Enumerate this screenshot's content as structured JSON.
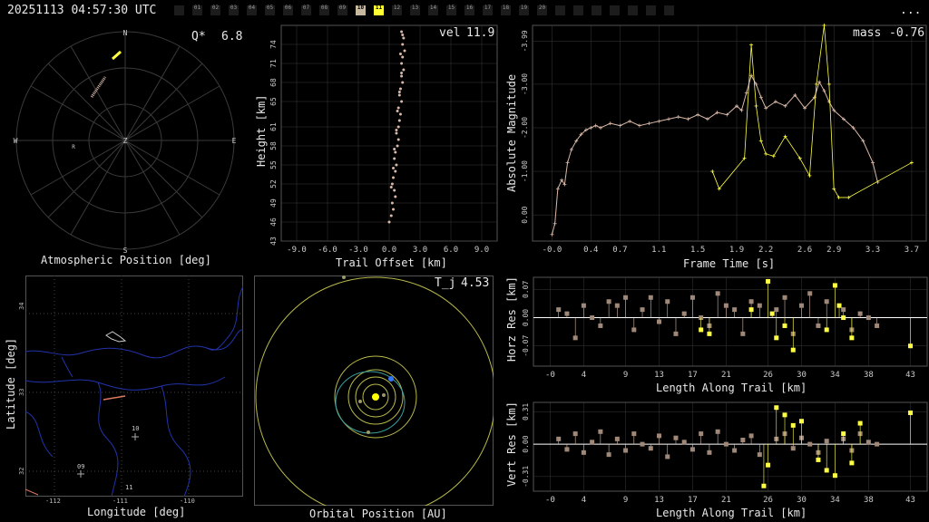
{
  "header": {
    "timestamp": "20251113 04:57:30 UTC",
    "menu": "...",
    "slots": [
      "",
      "01",
      "02",
      "03",
      "04",
      "05",
      "06",
      "07",
      "08",
      "09",
      "10",
      "11",
      "12",
      "13",
      "14",
      "15",
      "16",
      "17",
      "18",
      "19",
      "20",
      "",
      "",
      "",
      "",
      "",
      "",
      ""
    ],
    "selected_slot": "10",
    "current_slot": "11"
  },
  "panels": {
    "atmospheric": {
      "label": "Atmospheric Position [deg]",
      "stat_label": "Q*",
      "stat_value": "6.8",
      "compass": {
        "n": "N",
        "s": "S",
        "e": "E",
        "w": "W",
        "z": "Z",
        "r": "R"
      }
    },
    "height": {
      "label_x": "Trail Offset [km]",
      "label_y": "Height [km]",
      "stat_label": "vel",
      "stat_value": "11.9"
    },
    "magnitude": {
      "label_x": "Frame Time [s]",
      "label_y": "Absolute Magnitude",
      "stat_label": "mass",
      "stat_value": "-0.76"
    },
    "ground": {
      "label_x": "Longitude [deg]",
      "label_y": "Latitude [deg]",
      "markers": [
        "10",
        "09",
        "11"
      ]
    },
    "orbital": {
      "label": "Orbital Position [AU]",
      "stat_label": "T_j",
      "stat_value": "4.53"
    },
    "horz": {
      "label_x": "Length Along Trail [km]",
      "label_y": "Horz Res [km]"
    },
    "vert": {
      "label_x": "Length Along Trail [km]",
      "label_y": "Vert Res [km]"
    }
  },
  "colors": {
    "track": "#d8b8a8",
    "highlight": "#ffff44",
    "grid": "#3a3a3a",
    "map_water": "#2233aa",
    "orbit": "#b8b84a",
    "earth": "#3377ff"
  },
  "chart_data": [
    {
      "type": "scatter",
      "id": "height",
      "xlabel": "Trail Offset [km]",
      "ylabel": "Height [km]",
      "xlim": [
        -10.5,
        10.5
      ],
      "ylim": [
        43,
        77
      ],
      "x_ticks": [
        "-9.0",
        "-6.0",
        "-3.0",
        "0.0",
        "3.0",
        "6.0",
        "9.0"
      ],
      "x_tick_values": [
        -9,
        -6,
        -3,
        0,
        3,
        6,
        9
      ],
      "y_ticks": [
        "43",
        "46",
        "49",
        "52",
        "55",
        "58",
        "61",
        "65",
        "68",
        "71",
        "74"
      ],
      "y_tick_values": [
        43,
        46,
        49,
        52,
        55,
        58,
        61,
        65,
        68,
        71,
        74
      ],
      "series": [
        {
          "x": [
            0.0,
            0.2,
            0.4,
            0.3,
            0.6,
            0.5,
            0.3,
            0.4,
            0.6,
            0.7,
            0.5,
            0.6,
            0.8,
            0.9,
            0.7,
            0.9,
            1.0,
            1.1,
            0.9,
            1.2,
            1.0,
            1.1,
            1.3,
            1.2,
            1.4,
            1.2,
            1.3,
            1.5,
            1.3,
            1.4,
            1.2,
            1.3,
            1.1,
            1.2,
            1.0,
            0.8,
            0.7,
            0.5,
            0.4,
            0.2
          ],
          "y": [
            46,
            47,
            48,
            49,
            50,
            51,
            52,
            53,
            54,
            55,
            56,
            57,
            58,
            59,
            60,
            61,
            62,
            63,
            64,
            65,
            66,
            67,
            68,
            69,
            70,
            71,
            72,
            73,
            74,
            75,
            76,
            75.5,
            72.5,
            69.5,
            66.5,
            63.5,
            60.5,
            57.5,
            54.5,
            51.5
          ]
        }
      ]
    },
    {
      "type": "line",
      "id": "magnitude",
      "xlabel": "Frame Time [s]",
      "ylabel": "Absolute Magnitude",
      "xlim": [
        -0.2,
        3.85
      ],
      "ylim": [
        0.6,
        -4.35
      ],
      "x_ticks": [
        "-0.0",
        "0.4",
        "0.7",
        "1.1",
        "1.5",
        "1.9",
        "2.2",
        "2.6",
        "2.9",
        "3.3",
        "3.7"
      ],
      "x_tick_values": [
        0.0,
        0.4,
        0.7,
        1.1,
        1.5,
        1.9,
        2.2,
        2.6,
        2.9,
        3.3,
        3.7
      ],
      "y_ticks": [
        "0.00",
        "-1.00",
        "-2.00",
        "-3.00",
        "-3.99"
      ],
      "y_tick_values": [
        0,
        -1,
        -2,
        -3,
        -3.99
      ],
      "series": [
        {
          "x": [
            0.0,
            0.03,
            0.06,
            0.1,
            0.13,
            0.16,
            0.2,
            0.25,
            0.3,
            0.35,
            0.4,
            0.45,
            0.5,
            0.6,
            0.7,
            0.8,
            0.9,
            1.0,
            1.1,
            1.2,
            1.3,
            1.4,
            1.5,
            1.6,
            1.7,
            1.8,
            1.9,
            1.95,
            2.0,
            2.05,
            2.1,
            2.15,
            2.2,
            2.3,
            2.4,
            2.5,
            2.6,
            2.7,
            2.75,
            2.8,
            2.85,
            2.9,
            3.0,
            3.1,
            3.2,
            3.3,
            3.35
          ],
          "y": [
            0.45,
            0.2,
            -0.6,
            -0.8,
            -0.7,
            -1.2,
            -1.5,
            -1.7,
            -1.85,
            -1.95,
            -2.0,
            -2.05,
            -2.0,
            -2.1,
            -2.05,
            -2.15,
            -2.05,
            -2.1,
            -2.15,
            -2.2,
            -2.25,
            -2.2,
            -2.3,
            -2.2,
            -2.35,
            -2.3,
            -2.5,
            -2.4,
            -2.8,
            -3.2,
            -3.0,
            -2.7,
            -2.45,
            -2.6,
            -2.5,
            -2.75,
            -2.45,
            -2.7,
            -3.05,
            -2.85,
            -2.6,
            -2.4,
            -2.2,
            -2.0,
            -1.7,
            -1.2,
            -0.75
          ]
        },
        {
          "x": [
            1.65,
            1.72,
            1.98,
            2.05,
            2.1,
            2.15,
            2.2,
            2.28,
            2.4,
            2.55,
            2.65,
            2.72,
            2.8,
            2.85,
            2.9,
            2.95,
            3.05,
            3.7
          ],
          "y": [
            -1.0,
            -0.6,
            -1.3,
            -3.9,
            -2.5,
            -1.7,
            -1.4,
            -1.35,
            -1.8,
            -1.3,
            -0.9,
            -3.0,
            -4.35,
            -3.0,
            -0.6,
            -0.4,
            -0.4,
            -1.2
          ]
        }
      ]
    },
    {
      "type": "scatter",
      "id": "horz",
      "xlabel": "Length Along Trail [km]",
      "ylabel": "Horz Res [km]",
      "xlim": [
        -2,
        45
      ],
      "ylim": [
        -0.12,
        0.1
      ],
      "x_ticks": [
        "-0",
        "4",
        "9",
        "13",
        "17",
        "21",
        "26",
        "30",
        "34",
        "38",
        "43"
      ],
      "x_tick_values": [
        0,
        4,
        9,
        13,
        17,
        21,
        26,
        30,
        34,
        38,
        43
      ],
      "y_ticks": [
        "0.07",
        "0.00",
        "-0.07"
      ],
      "y_tick_values": [
        0.07,
        0,
        -0.07
      ],
      "series": [
        {
          "x": [
            1,
            2,
            3,
            4,
            5,
            6,
            7,
            8,
            9,
            10,
            11,
            12,
            13,
            14,
            15,
            16,
            17,
            18,
            19,
            20,
            21,
            22,
            23,
            24,
            25,
            27,
            28,
            29,
            30,
            31,
            32,
            33,
            35,
            36,
            37,
            38,
            39
          ],
          "y": [
            0.02,
            0.01,
            -0.05,
            0.03,
            0.0,
            -0.02,
            0.04,
            0.03,
            0.05,
            -0.03,
            0.02,
            0.05,
            -0.01,
            0.04,
            -0.04,
            0.01,
            0.05,
            0.0,
            -0.02,
            0.06,
            0.03,
            0.02,
            -0.04,
            0.04,
            0.03,
            0.02,
            0.05,
            -0.04,
            0.03,
            0.06,
            -0.02,
            0.04,
            0.02,
            -0.03,
            0.01,
            0.0,
            -0.02
          ]
        },
        {
          "x": [
            18,
            19,
            24,
            26,
            26.5,
            27,
            28,
            29,
            33,
            34,
            34.5,
            35,
            36,
            43
          ],
          "y": [
            -0.03,
            -0.04,
            0.02,
            0.09,
            0.01,
            -0.05,
            -0.02,
            -0.08,
            -0.03,
            0.08,
            0.03,
            0.0,
            -0.05,
            -0.07
          ]
        }
      ]
    },
    {
      "type": "scatter",
      "id": "vert",
      "xlabel": "Length Along Trail [km]",
      "ylabel": "Vert Res [km]",
      "xlim": [
        -2,
        45
      ],
      "ylim": [
        -0.45,
        0.4
      ],
      "x_ticks": [
        "-0",
        "4",
        "9",
        "13",
        "17",
        "21",
        "26",
        "30",
        "34",
        "38",
        "43"
      ],
      "x_tick_values": [
        0,
        4,
        9,
        13,
        17,
        21,
        26,
        30,
        34,
        38,
        43
      ],
      "y_ticks": [
        "0.31",
        "0.00",
        "-0.31"
      ],
      "y_tick_values": [
        0.31,
        0,
        -0.31
      ],
      "series": [
        {
          "x": [
            1,
            2,
            3,
            4,
            5,
            6,
            7,
            8,
            9,
            10,
            11,
            12,
            13,
            14,
            15,
            16,
            17,
            18,
            19,
            20,
            21,
            22,
            23,
            24,
            25,
            27,
            28,
            29,
            30,
            31,
            32,
            33,
            35,
            36,
            37,
            38,
            39
          ],
          "y": [
            0.05,
            -0.05,
            0.1,
            -0.08,
            0.02,
            0.12,
            -0.1,
            0.05,
            -0.06,
            0.1,
            0.0,
            -0.04,
            0.08,
            -0.12,
            0.06,
            0.02,
            -0.05,
            0.1,
            -0.08,
            0.12,
            0.0,
            -0.06,
            0.04,
            0.08,
            -0.1,
            0.05,
            0.1,
            -0.04,
            0.06,
            0.0,
            -0.08,
            0.03,
            0.05,
            -0.06,
            0.1,
            0.02,
            0.0
          ]
        },
        {
          "x": [
            25.5,
            26,
            27,
            28,
            29,
            30,
            32,
            33,
            34,
            35,
            36,
            37,
            43
          ],
          "y": [
            -0.4,
            -0.2,
            0.35,
            0.28,
            0.18,
            0.22,
            -0.15,
            -0.25,
            -0.3,
            0.1,
            -0.18,
            0.2,
            0.3
          ]
        }
      ]
    }
  ]
}
